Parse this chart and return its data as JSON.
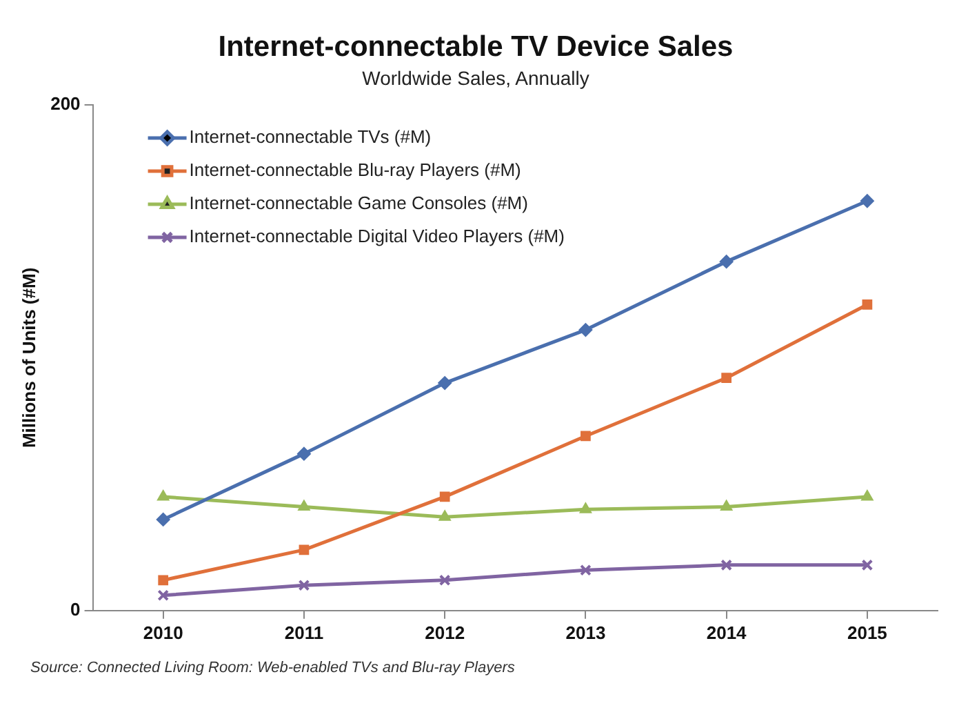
{
  "chart_data": {
    "type": "line",
    "title": "Internet-connectable TV Device Sales",
    "subtitle": "Worldwide Sales, Annually",
    "ylabel": "Millions of Units (#M)",
    "categories": [
      "2010",
      "2011",
      "2012",
      "2013",
      "2014",
      "2015"
    ],
    "series": [
      {
        "name": "Internet-connectable TVs (#M)",
        "color": "#4a6fae",
        "marker": "diamond",
        "values": [
          36,
          62,
          90,
          111,
          138,
          162
        ]
      },
      {
        "name": "Internet-connectable Blu-ray Players (#M)",
        "color": "#e0703a",
        "marker": "square",
        "values": [
          12,
          24,
          45,
          69,
          92,
          121
        ]
      },
      {
        "name": "Internet-connectable Game Consoles (#M)",
        "color": "#9bbb59",
        "marker": "triangle",
        "values": [
          45,
          41,
          37,
          40,
          41,
          45
        ]
      },
      {
        "name": "Internet-connectable Digital Video Players (#M)",
        "color": "#8064a2",
        "marker": "cross",
        "values": [
          6,
          10,
          12,
          16,
          18,
          18
        ]
      }
    ],
    "ylim": [
      0,
      200
    ],
    "yticks": [
      0,
      200
    ],
    "grid": false,
    "legend": "top left",
    "line_style": "solid",
    "annotations": [
      "Source: Connected Living Room: Web-enabled TVs and Blu-ray Players"
    ]
  }
}
